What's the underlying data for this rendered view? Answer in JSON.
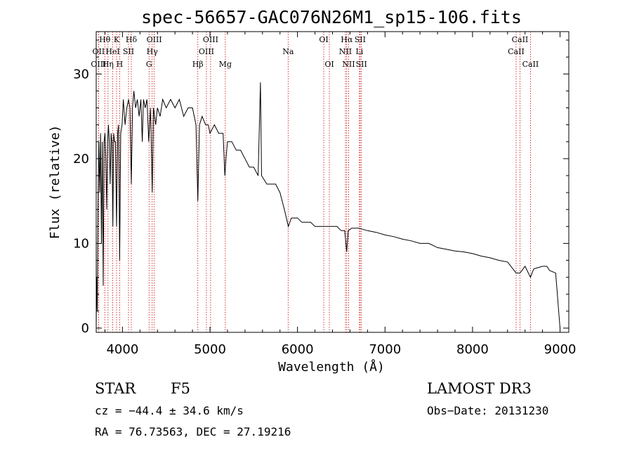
{
  "chart_data": {
    "type": "line",
    "title": "spec-56657-GAC076N26M1_sp15-106.fits",
    "xlabel": "Wavelength (Å)",
    "ylabel": "Flux (relative)",
    "xlim": [
      3700,
      9100
    ],
    "ylim": [
      -0.5,
      35
    ],
    "xticks": [
      4000,
      5000,
      6000,
      7000,
      8000,
      9000
    ],
    "yticks": [
      0,
      10,
      20,
      30
    ],
    "series": [
      {
        "name": "spectrum",
        "points": [
          [
            3700,
            0
          ],
          [
            3705,
            6
          ],
          [
            3712,
            2
          ],
          [
            3720,
            14
          ],
          [
            3730,
            22
          ],
          [
            3740,
            16
          ],
          [
            3750,
            23
          ],
          [
            3760,
            10
          ],
          [
            3770,
            22
          ],
          [
            3780,
            5
          ],
          [
            3790,
            22
          ],
          [
            3800,
            23
          ],
          [
            3810,
            20
          ],
          [
            3820,
            14
          ],
          [
            3830,
            22
          ],
          [
            3840,
            24
          ],
          [
            3850,
            22
          ],
          [
            3860,
            17
          ],
          [
            3870,
            23
          ],
          [
            3880,
            22
          ],
          [
            3890,
            12
          ],
          [
            3900,
            23
          ],
          [
            3910,
            22
          ],
          [
            3920,
            22
          ],
          [
            3933,
            12
          ],
          [
            3945,
            23
          ],
          [
            3955,
            24
          ],
          [
            3968,
            8
          ],
          [
            3980,
            23
          ],
          [
            3995,
            24
          ],
          [
            4010,
            27
          ],
          [
            4030,
            24
          ],
          [
            4050,
            26
          ],
          [
            4070,
            27
          ],
          [
            4085,
            26
          ],
          [
            4101,
            17
          ],
          [
            4115,
            26
          ],
          [
            4130,
            28
          ],
          [
            4150,
            26
          ],
          [
            4170,
            27
          ],
          [
            4190,
            25
          ],
          [
            4210,
            27
          ],
          [
            4226,
            22
          ],
          [
            4240,
            27
          ],
          [
            4260,
            26
          ],
          [
            4280,
            27
          ],
          [
            4300,
            22
          ],
          [
            4320,
            26
          ],
          [
            4340,
            16
          ],
          [
            4355,
            26
          ],
          [
            4380,
            24
          ],
          [
            4400,
            26
          ],
          [
            4430,
            25
          ],
          [
            4460,
            27
          ],
          [
            4500,
            26
          ],
          [
            4550,
            27
          ],
          [
            4600,
            26
          ],
          [
            4650,
            27
          ],
          [
            4700,
            25
          ],
          [
            4750,
            26
          ],
          [
            4800,
            26
          ],
          [
            4840,
            24
          ],
          [
            4861,
            15
          ],
          [
            4880,
            24
          ],
          [
            4910,
            25
          ],
          [
            4950,
            24
          ],
          [
            4980,
            24
          ],
          [
            5000,
            23
          ],
          [
            5050,
            24
          ],
          [
            5100,
            23
          ],
          [
            5150,
            23
          ],
          [
            5170,
            18
          ],
          [
            5183,
            20
          ],
          [
            5200,
            22
          ],
          [
            5250,
            22
          ],
          [
            5300,
            21
          ],
          [
            5350,
            21
          ],
          [
            5400,
            20
          ],
          [
            5450,
            19
          ],
          [
            5500,
            19
          ],
          [
            5550,
            18
          ],
          [
            5577,
            29
          ],
          [
            5590,
            18
          ],
          [
            5650,
            17
          ],
          [
            5700,
            17
          ],
          [
            5750,
            17
          ],
          [
            5800,
            16
          ],
          [
            5850,
            14
          ],
          [
            5895,
            12
          ],
          [
            5930,
            13
          ],
          [
            6000,
            13
          ],
          [
            6050,
            12.5
          ],
          [
            6100,
            12.5
          ],
          [
            6150,
            12.5
          ],
          [
            6200,
            12
          ],
          [
            6250,
            12
          ],
          [
            6300,
            12
          ],
          [
            6350,
            12
          ],
          [
            6400,
            12
          ],
          [
            6450,
            12
          ],
          [
            6500,
            11.5
          ],
          [
            6540,
            11.5
          ],
          [
            6562,
            9
          ],
          [
            6580,
            11.5
          ],
          [
            6620,
            11.8
          ],
          [
            6700,
            11.8
          ],
          [
            6800,
            11.5
          ],
          [
            6900,
            11.3
          ],
          [
            7000,
            11
          ],
          [
            7100,
            10.8
          ],
          [
            7200,
            10.5
          ],
          [
            7300,
            10.3
          ],
          [
            7400,
            10
          ],
          [
            7500,
            10
          ],
          [
            7600,
            9.5
          ],
          [
            7700,
            9.3
          ],
          [
            7800,
            9.1
          ],
          [
            7900,
            9
          ],
          [
            8000,
            8.8
          ],
          [
            8100,
            8.5
          ],
          [
            8200,
            8.3
          ],
          [
            8300,
            8
          ],
          [
            8400,
            7.8
          ],
          [
            8498,
            6.5
          ],
          [
            8542,
            6.5
          ],
          [
            8600,
            7.3
          ],
          [
            8662,
            6
          ],
          [
            8700,
            7
          ],
          [
            8800,
            7.3
          ],
          [
            8850,
            7.3
          ],
          [
            8880,
            6.8
          ],
          [
            8950,
            6.5
          ],
          [
            9000,
            0
          ]
        ]
      }
    ],
    "line_markers": [
      {
        "label": "Hθ",
        "x": 3798,
        "row": 1
      },
      {
        "label": "OII",
        "x": 3727,
        "row": 2
      },
      {
        "label": "OIII",
        "x": 3727,
        "row": 3
      },
      {
        "label": "Hη",
        "x": 3835,
        "row": 3
      },
      {
        "label": "HeI",
        "x": 3889,
        "row": 2
      },
      {
        "label": "K",
        "x": 3933,
        "row": 1
      },
      {
        "label": "H",
        "x": 3968,
        "row": 3
      },
      {
        "label": "SII",
        "x": 4069,
        "row": 2
      },
      {
        "label": "Hδ",
        "x": 4101,
        "row": 1
      },
      {
        "label": "OIII",
        "x": 4363,
        "row": 1
      },
      {
        "label": "Hγ",
        "x": 4340,
        "row": 2
      },
      {
        "label": "G",
        "x": 4304,
        "row": 3
      },
      {
        "label": "OIII",
        "x": 5007,
        "row": 1
      },
      {
        "label": "OIII",
        "x": 4959,
        "row": 2
      },
      {
        "label": "Hβ",
        "x": 4861,
        "row": 3
      },
      {
        "label": "Mg",
        "x": 5175,
        "row": 3
      },
      {
        "label": "Na",
        "x": 5893,
        "row": 2
      },
      {
        "label": "OI",
        "x": 6300,
        "row": 1
      },
      {
        "label": "OI",
        "x": 6364,
        "row": 3
      },
      {
        "label": "Hα",
        "x": 6563,
        "row": 1
      },
      {
        "label": "NII",
        "x": 6548,
        "row": 2
      },
      {
        "label": "NII",
        "x": 6584,
        "row": 3
      },
      {
        "label": "SII",
        "x": 6716,
        "row": 1
      },
      {
        "label": "Li",
        "x": 6708,
        "row": 2
      },
      {
        "label": "SII",
        "x": 6731,
        "row": 3
      },
      {
        "label": "CaII",
        "x": 8542,
        "row": 1
      },
      {
        "label": "CaII",
        "x": 8498,
        "row": 2
      },
      {
        "label": "CaII",
        "x": 8662,
        "row": 3
      }
    ]
  },
  "footer": {
    "class_label": "STAR",
    "subclass": "F5",
    "survey": "LAMOST DR3",
    "cz_text": "cz = −44.4 ± 34.6 km/s",
    "obs_date": "Obs−Date: 20131230",
    "radec": "RA =  76.73563, DEC =  27.19216"
  },
  "colors": {
    "spectrum": "#000000",
    "marker_line": "#cc0000",
    "axis": "#000000"
  }
}
